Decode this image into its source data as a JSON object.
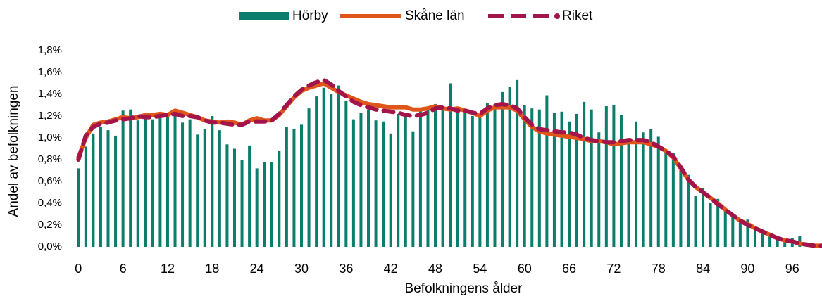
{
  "chart_data": {
    "type": "bar",
    "xlabel": "Befolkningens ålder",
    "ylabel": "Andel av befolkningen",
    "x": [
      0,
      1,
      2,
      3,
      4,
      5,
      6,
      7,
      8,
      9,
      10,
      11,
      12,
      13,
      14,
      15,
      16,
      17,
      18,
      19,
      20,
      21,
      22,
      23,
      24,
      25,
      26,
      27,
      28,
      29,
      30,
      31,
      32,
      33,
      34,
      35,
      36,
      37,
      38,
      39,
      40,
      41,
      42,
      43,
      44,
      45,
      46,
      47,
      48,
      49,
      50,
      51,
      52,
      53,
      54,
      55,
      56,
      57,
      58,
      59,
      60,
      61,
      62,
      63,
      64,
      65,
      66,
      67,
      68,
      69,
      70,
      71,
      72,
      73,
      74,
      75,
      76,
      77,
      78,
      79,
      80,
      81,
      82,
      83,
      84,
      85,
      86,
      87,
      88,
      89,
      90,
      91,
      92,
      93,
      94,
      95,
      96,
      97,
      98,
      99,
      100
    ],
    "series": [
      {
        "name": "Hörby",
        "type": "bar",
        "color": "#0b7d6b",
        "values": [
          0.72,
          0.92,
          1.04,
          1.1,
          1.07,
          1.02,
          1.25,
          1.26,
          1.16,
          1.2,
          1.17,
          1.18,
          1.2,
          1.23,
          1.14,
          1.17,
          1.03,
          1.08,
          1.2,
          1.07,
          0.94,
          0.9,
          0.8,
          0.93,
          0.72,
          0.78,
          0.78,
          0.88,
          1.1,
          1.08,
          1.12,
          1.27,
          1.38,
          1.46,
          1.4,
          1.48,
          1.34,
          1.17,
          1.23,
          1.26,
          1.16,
          1.15,
          1.04,
          1.22,
          1.2,
          1.06,
          1.27,
          1.28,
          1.31,
          1.27,
          1.5,
          1.26,
          1.24,
          1.2,
          1.22,
          1.32,
          1.31,
          1.42,
          1.47,
          1.53,
          1.3,
          1.27,
          1.26,
          1.39,
          1.23,
          1.24,
          1.15,
          1.22,
          1.33,
          1.26,
          1.05,
          1.29,
          1.3,
          1.21,
          0.97,
          1.15,
          1.05,
          1.08,
          1.01,
          0.88,
          0.86,
          0.74,
          0.66,
          0.47,
          0.54,
          0.4,
          0.44,
          0.34,
          0.28,
          0.24,
          0.25,
          0.18,
          0.14,
          0.11,
          0.09,
          0.07,
          0.08,
          0.1,
          0.03,
          0.02,
          0.01
        ]
      },
      {
        "name": "Skåne län",
        "type": "line",
        "line_style": "solid",
        "color": "#e0561a",
        "values": [
          0.82,
          1.0,
          1.12,
          1.14,
          1.15,
          1.17,
          1.19,
          1.18,
          1.19,
          1.21,
          1.21,
          1.22,
          1.21,
          1.25,
          1.23,
          1.21,
          1.19,
          1.16,
          1.15,
          1.14,
          1.15,
          1.14,
          1.12,
          1.16,
          1.18,
          1.16,
          1.16,
          1.21,
          1.29,
          1.37,
          1.43,
          1.46,
          1.48,
          1.5,
          1.46,
          1.42,
          1.39,
          1.36,
          1.33,
          1.31,
          1.3,
          1.29,
          1.28,
          1.28,
          1.28,
          1.26,
          1.26,
          1.27,
          1.29,
          1.27,
          1.26,
          1.27,
          1.25,
          1.23,
          1.2,
          1.25,
          1.28,
          1.28,
          1.28,
          1.25,
          1.17,
          1.1,
          1.06,
          1.04,
          1.03,
          1.02,
          1.01,
          1.0,
          0.99,
          0.97,
          0.97,
          0.96,
          0.94,
          0.95,
          0.96,
          0.96,
          0.96,
          0.94,
          0.92,
          0.88,
          0.82,
          0.72,
          0.62,
          0.55,
          0.5,
          0.45,
          0.4,
          0.34,
          0.29,
          0.24,
          0.21,
          0.17,
          0.14,
          0.11,
          0.08,
          0.06,
          0.05,
          0.03,
          0.02,
          0.01,
          0.01
        ]
      },
      {
        "name": "Riket",
        "type": "line",
        "line_style": "dashed",
        "color": "#a3144a",
        "values": [
          0.8,
          1.02,
          1.1,
          1.13,
          1.14,
          1.16,
          1.17,
          1.18,
          1.2,
          1.19,
          1.19,
          1.2,
          1.21,
          1.22,
          1.2,
          1.2,
          1.19,
          1.16,
          1.14,
          1.14,
          1.13,
          1.12,
          1.12,
          1.15,
          1.15,
          1.15,
          1.16,
          1.22,
          1.3,
          1.38,
          1.44,
          1.48,
          1.51,
          1.53,
          1.49,
          1.43,
          1.38,
          1.33,
          1.3,
          1.28,
          1.26,
          1.25,
          1.24,
          1.23,
          1.21,
          1.2,
          1.21,
          1.23,
          1.27,
          1.28,
          1.27,
          1.25,
          1.25,
          1.23,
          1.22,
          1.27,
          1.3,
          1.31,
          1.3,
          1.27,
          1.19,
          1.12,
          1.08,
          1.07,
          1.06,
          1.05,
          1.05,
          1.03,
          1.0,
          0.98,
          0.97,
          0.96,
          0.96,
          0.97,
          0.98,
          0.98,
          0.98,
          0.96,
          0.92,
          0.88,
          0.83,
          0.73,
          0.62,
          0.55,
          0.5,
          0.45,
          0.39,
          0.34,
          0.29,
          0.24,
          0.2,
          0.17,
          0.14,
          0.11,
          0.08,
          0.06,
          0.05,
          0.03,
          0.02,
          0.01,
          0.01
        ]
      }
    ],
    "xlim": [
      -0.5,
      100
    ],
    "xticks": [
      0,
      6,
      12,
      18,
      24,
      30,
      36,
      42,
      48,
      54,
      60,
      66,
      72,
      78,
      84,
      90,
      96
    ],
    "ylim": [
      0,
      1.8
    ],
    "yticks": [
      {
        "value": 0,
        "label": "0,0%"
      },
      {
        "value": 0.2,
        "label": "0,2%"
      },
      {
        "value": 0.4,
        "label": "0,4%"
      },
      {
        "value": 0.6,
        "label": "0,6%"
      },
      {
        "value": 0.8,
        "label": "0,8%"
      },
      {
        "value": 1.0,
        "label": "1,0%"
      },
      {
        "value": 1.2,
        "label": "1,2%"
      },
      {
        "value": 1.4,
        "label": "1,4%"
      },
      {
        "value": 1.6,
        "label": "1,6%"
      },
      {
        "value": 1.8,
        "label": "1,8%"
      }
    ],
    "legend": "top"
  }
}
